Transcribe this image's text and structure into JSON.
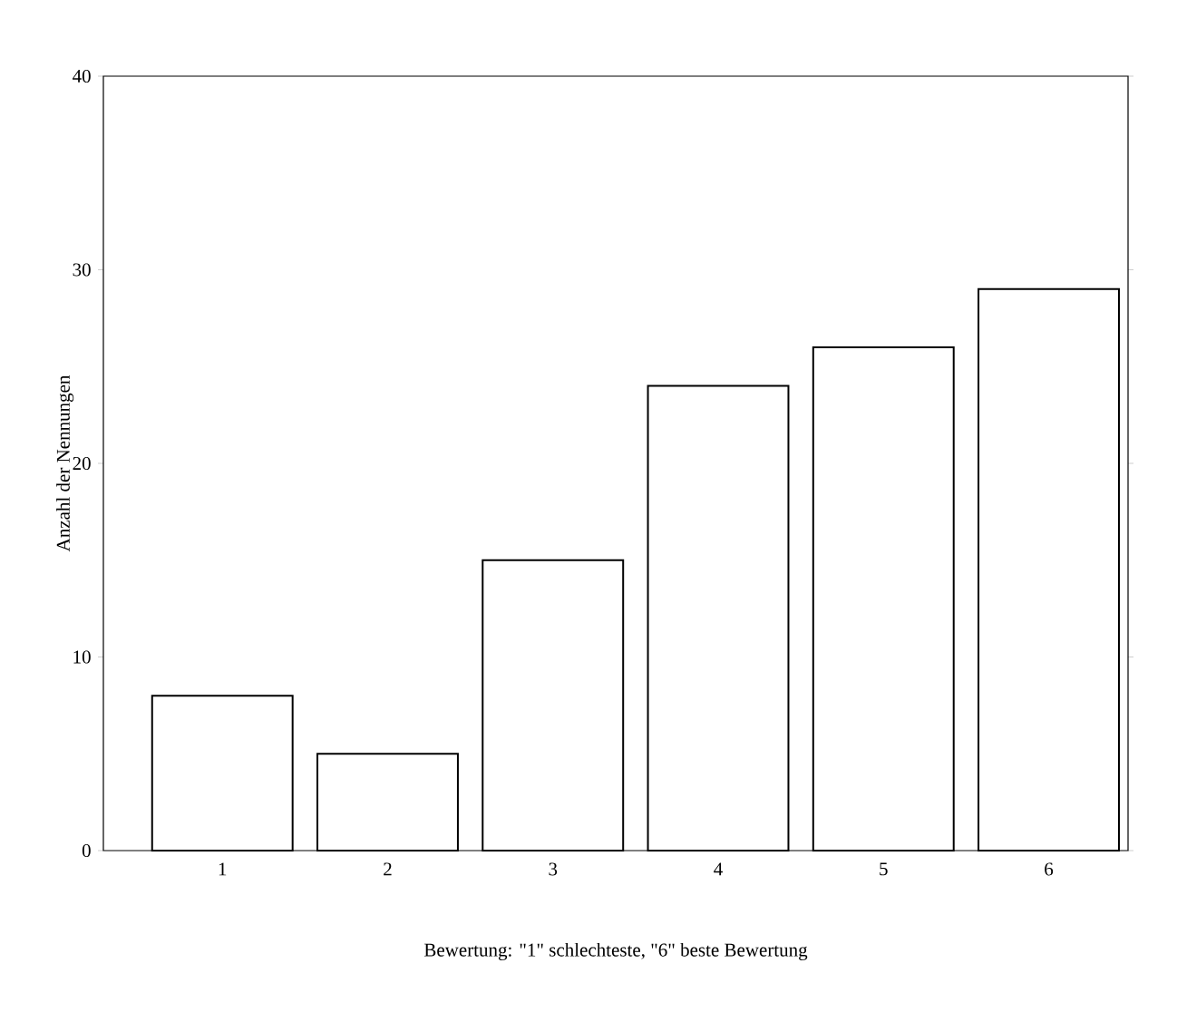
{
  "chart_data": {
    "type": "bar",
    "xlabel": "Bewertung: \"1\" schlechteste, \"6\" beste Bewertung",
    "ylabel": "Anzahl der Nennungen",
    "categories": [
      "1",
      "2",
      "3",
      "4",
      "5",
      "6"
    ],
    "values": [
      8,
      5,
      15,
      24,
      26,
      29
    ],
    "color": "#ffffff",
    "ylim": [
      0,
      40
    ],
    "yticks": [
      0,
      10,
      20,
      30,
      40
    ]
  }
}
